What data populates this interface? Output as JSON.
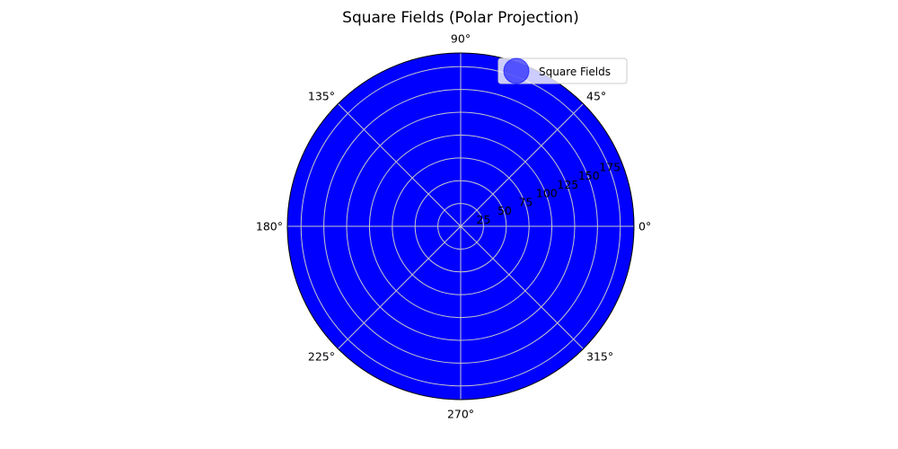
{
  "chart_data": {
    "type": "scatter",
    "projection": "polar",
    "title": "Square Fields (Polar Projection)",
    "angular_ticks": [
      "0°",
      "45°",
      "90°",
      "135°",
      "180°",
      "225°",
      "270°",
      "315°"
    ],
    "angular_tick_degrees": [
      0,
      45,
      90,
      135,
      180,
      225,
      270,
      315
    ],
    "radial_ticks": [
      "25",
      "50",
      "75",
      "100",
      "125",
      "150",
      "175"
    ],
    "radial_tick_values": [
      25,
      50,
      75,
      100,
      125,
      150,
      175
    ],
    "rlim": [
      0,
      190
    ],
    "grid": true,
    "fill_color": "#0000ff",
    "grid_color": "#c8c8c8",
    "legend_position": "top-right",
    "series": [
      {
        "name": "Square Fields",
        "color": "#0000ff",
        "marker": "o",
        "alpha": 0.6
      }
    ]
  }
}
